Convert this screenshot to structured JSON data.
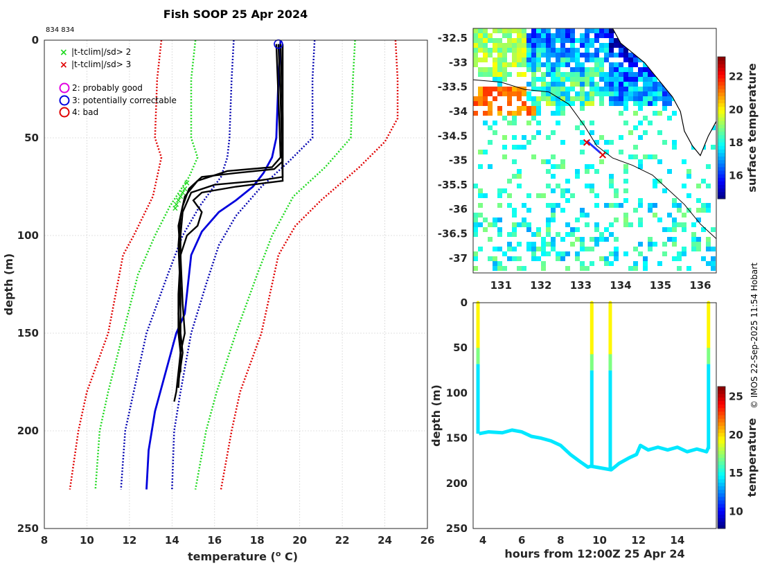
{
  "title": "Fish SOOP 25 Apr 2024",
  "id_label": "834 834",
  "credit": "© IMOS 22-Sep-2025 11:54 Hobart",
  "legend": {
    "x_items": [
      {
        "label": "|t-tclim|/sd> 2",
        "color": "#1fd91f"
      },
      {
        "label": "|t-tclim|/sd> 3",
        "color": "#e00000"
      }
    ],
    "o_items": [
      {
        "label": "2: probably good",
        "color": "#e000e0"
      },
      {
        "label": "3: potentially correctable",
        "color": "#0000e0"
      },
      {
        "label": "4: bad",
        "color": "#e00000"
      }
    ]
  },
  "chart_data": [
    {
      "name": "profile",
      "type": "line",
      "xlabel": "temperature (",
      "xlabel_sup": "o",
      "xlabel_end": " C)",
      "ylabel": "depth (m)",
      "xlim": [
        8,
        26
      ],
      "ylim": [
        250,
        0
      ],
      "xticks": [
        "8",
        "10",
        "12",
        "14",
        "16",
        "18",
        "20",
        "22",
        "24",
        "26"
      ],
      "yticks": [
        "0",
        "50",
        "100",
        "150",
        "200",
        "250"
      ],
      "climatology": [
        {
          "name": "clim -3sd",
          "color": "#e00000",
          "points": [
            [
              13.5,
              0
            ],
            [
              13.3,
              20
            ],
            [
              13.2,
              50
            ],
            [
              13.5,
              60
            ],
            [
              13.1,
              80
            ],
            [
              12.2,
              100
            ],
            [
              11.7,
              110
            ],
            [
              11.0,
              150
            ],
            [
              10.0,
              180
            ],
            [
              9.6,
              200
            ],
            [
              9.2,
              230
            ]
          ]
        },
        {
          "name": "clim -2sd",
          "color": "#1fd91f",
          "points": [
            [
              15.1,
              0
            ],
            [
              14.9,
              20
            ],
            [
              14.9,
              50
            ],
            [
              15.2,
              60
            ],
            [
              14.8,
              70
            ],
            [
              13.9,
              85
            ],
            [
              13.2,
              100
            ],
            [
              12.4,
              120
            ],
            [
              11.7,
              150
            ],
            [
              11.0,
              180
            ],
            [
              10.6,
              200
            ],
            [
              10.4,
              230
            ]
          ]
        },
        {
          "name": "clim -1sd",
          "color": "#0000b0",
          "points": [
            [
              16.9,
              0
            ],
            [
              16.8,
              20
            ],
            [
              16.7,
              50
            ],
            [
              16.6,
              60
            ],
            [
              16.3,
              70
            ],
            [
              15.3,
              85
            ],
            [
              14.5,
              100
            ],
            [
              13.8,
              120
            ],
            [
              12.8,
              150
            ],
            [
              12.2,
              180
            ],
            [
              11.8,
              200
            ],
            [
              11.6,
              230
            ]
          ]
        },
        {
          "name": "clim +1sd",
          "color": "#0000b0",
          "points": [
            [
              20.7,
              0
            ],
            [
              20.6,
              20
            ],
            [
              20.6,
              50
            ],
            [
              19.5,
              62
            ],
            [
              18.2,
              75
            ],
            [
              17.0,
              90
            ],
            [
              16.2,
              105
            ],
            [
              15.6,
              125
            ],
            [
              14.9,
              150
            ],
            [
              14.4,
              180
            ],
            [
              14.1,
              200
            ],
            [
              14.0,
              230
            ]
          ]
        },
        {
          "name": "clim +2sd",
          "color": "#1fd91f",
          "points": [
            [
              22.6,
              0
            ],
            [
              22.5,
              20
            ],
            [
              22.4,
              50
            ],
            [
              21.2,
              65
            ],
            [
              19.7,
              80
            ],
            [
              18.7,
              100
            ],
            [
              18.0,
              120
            ],
            [
              17.0,
              150
            ],
            [
              16.1,
              180
            ],
            [
              15.6,
              200
            ],
            [
              15.1,
              230
            ]
          ]
        },
        {
          "name": "clim +3sd",
          "color": "#e00000",
          "points": [
            [
              24.5,
              0
            ],
            [
              24.6,
              20
            ],
            [
              24.6,
              40
            ],
            [
              24.0,
              52
            ],
            [
              22.8,
              65
            ],
            [
              21.0,
              82
            ],
            [
              19.8,
              95
            ],
            [
              19.0,
              110
            ],
            [
              18.2,
              150
            ],
            [
              17.2,
              180
            ],
            [
              16.8,
              200
            ],
            [
              16.3,
              230
            ]
          ]
        }
      ],
      "climatology_mean": {
        "color": "#0000dd",
        "points": [
          [
            19.1,
            0
          ],
          [
            19.0,
            20
          ],
          [
            18.9,
            50
          ],
          [
            18.7,
            60
          ],
          [
            18.3,
            68
          ],
          [
            17.8,
            75
          ],
          [
            17.0,
            82
          ],
          [
            16.2,
            88
          ],
          [
            15.4,
            98
          ],
          [
            14.9,
            110
          ],
          [
            14.6,
            140
          ],
          [
            14.2,
            150
          ],
          [
            13.7,
            170
          ],
          [
            13.2,
            190
          ],
          [
            12.9,
            210
          ],
          [
            12.8,
            230
          ]
        ]
      },
      "casts": [
        {
          "name": "cast 1",
          "points": [
            [
              19.2,
              2
            ],
            [
              19.2,
              30
            ],
            [
              19.2,
              62
            ],
            [
              18.8,
              66
            ],
            [
              17.0,
              68
            ],
            [
              15.4,
              70
            ],
            [
              14.8,
              76
            ],
            [
              14.5,
              85
            ],
            [
              14.3,
              95
            ],
            [
              14.4,
              110
            ],
            [
              14.3,
              130
            ],
            [
              14.3,
              150
            ],
            [
              14.4,
              160
            ],
            [
              14.3,
              170
            ],
            [
              14.2,
              180
            ],
            [
              14.1,
              185
            ]
          ]
        },
        {
          "name": "cast 2",
          "points": [
            [
              18.9,
              2
            ],
            [
              19.0,
              30
            ],
            [
              19.1,
              60
            ],
            [
              18.7,
              65
            ],
            [
              16.6,
              67
            ],
            [
              15.2,
              72
            ],
            [
              14.6,
              80
            ],
            [
              14.4,
              90
            ],
            [
              14.3,
              105
            ],
            [
              14.4,
              130
            ],
            [
              14.4,
              150
            ],
            [
              14.5,
              160
            ],
            [
              14.3,
              175
            ]
          ]
        },
        {
          "name": "cast 3",
          "points": [
            [
              19.1,
              2
            ],
            [
              19.2,
              40
            ],
            [
              19.2,
              70
            ],
            [
              18.0,
              72
            ],
            [
              16.0,
              74
            ],
            [
              14.9,
              78
            ],
            [
              14.5,
              88
            ],
            [
              14.4,
              100
            ],
            [
              14.4,
              120
            ],
            [
              14.3,
              140
            ],
            [
              14.4,
              160
            ],
            [
              14.3,
              178
            ]
          ]
        },
        {
          "name": "cast 4",
          "points": [
            [
              19.0,
              2
            ],
            [
              19.1,
              30
            ],
            [
              19.2,
              72
            ],
            [
              17.0,
              75
            ],
            [
              15.4,
              78
            ],
            [
              15.0,
              82
            ],
            [
              15.4,
              88
            ],
            [
              15.2,
              95
            ],
            [
              14.7,
              100
            ],
            [
              14.4,
              110
            ],
            [
              14.5,
              135
            ],
            [
              14.6,
              150
            ],
            [
              14.4,
              160
            ],
            [
              14.4,
              170
            ]
          ]
        }
      ],
      "flag_x_green": [
        [
          14.7,
          73
        ],
        [
          14.6,
          76
        ],
        [
          14.5,
          78
        ],
        [
          14.4,
          80
        ],
        [
          14.3,
          82
        ],
        [
          14.2,
          84
        ],
        [
          14.15,
          86
        ]
      ],
      "flag_circle": [
        19.0,
        2
      ]
    },
    {
      "name": "map",
      "type": "heatmap",
      "xlim": [
        130.3,
        136.4
      ],
      "ylim": [
        -37.3,
        -32.3
      ],
      "xticks": [
        "131",
        "132",
        "133",
        "134",
        "135",
        "136"
      ],
      "yticks": [
        "-32.5",
        "-33",
        "-33.5",
        "-34",
        "-34.5",
        "-35",
        "-35.5",
        "-36",
        "-36.5",
        "-37"
      ],
      "colorbar_label": "surface temperature",
      "colorbar_ticks": [
        "16",
        "18",
        "20",
        "22"
      ],
      "clim": [
        14.6,
        23.2
      ],
      "coast": [
        [
          133.8,
          -32.3
        ],
        [
          134.0,
          -32.6
        ],
        [
          134.3,
          -32.8
        ],
        [
          134.6,
          -33.0
        ],
        [
          135.0,
          -33.4
        ],
        [
          135.3,
          -33.7
        ],
        [
          135.5,
          -34.0
        ],
        [
          135.6,
          -34.4
        ],
        [
          135.8,
          -34.7
        ],
        [
          136.0,
          -34.9
        ],
        [
          136.2,
          -34.5
        ],
        [
          136.4,
          -34.2
        ]
      ],
      "shelf": [
        [
          130.3,
          -33.35
        ],
        [
          131.0,
          -33.4
        ],
        [
          131.6,
          -33.55
        ],
        [
          132.2,
          -33.6
        ],
        [
          132.7,
          -33.85
        ],
        [
          133.1,
          -34.3
        ],
        [
          133.4,
          -34.7
        ],
        [
          133.8,
          -34.95
        ],
        [
          134.3,
          -35.1
        ],
        [
          134.8,
          -35.3
        ],
        [
          135.2,
          -35.6
        ],
        [
          135.6,
          -35.9
        ],
        [
          136.0,
          -36.3
        ],
        [
          136.4,
          -36.6
        ]
      ],
      "track": [
        [
          133.15,
          -34.6
        ],
        [
          133.5,
          -34.85
        ]
      ],
      "track_x": [
        [
          133.15,
          -34.62
        ],
        [
          133.55,
          -34.88
        ]
      ]
    },
    {
      "name": "timeseries",
      "type": "scatter",
      "xlabel": "hours from 12:00Z 25 Apr 24",
      "ylabel": "depth (m)",
      "xlim": [
        3.5,
        16.0
      ],
      "ylim": [
        250,
        0
      ],
      "xticks": [
        "4",
        "6",
        "8",
        "10",
        "12",
        "14"
      ],
      "yticks": [
        "0",
        "50",
        "100",
        "150",
        "200",
        "250"
      ],
      "colorbar_label": "temperature",
      "colorbar_ticks": [
        "10",
        "15",
        "20",
        "25"
      ],
      "clim": [
        7.8,
        26.3
      ],
      "casts": [
        {
          "x0": 3.75,
          "t_surface": 19.5,
          "t_deep": 14.3,
          "thermocline": 68,
          "bottom": 145
        },
        {
          "x0": 9.6,
          "t_surface": 19.5,
          "t_deep": 14.3,
          "thermocline": 75,
          "bottom": 182
        },
        {
          "x0": 10.55,
          "t_surface": 19.5,
          "t_deep": 14.3,
          "thermocline": 75,
          "bottom": 185
        },
        {
          "x0": 15.6,
          "t_surface": 19.5,
          "t_deep": 14.3,
          "thermocline": 68,
          "bottom": 162
        }
      ],
      "bottom_track": [
        [
          3.8,
          145
        ],
        [
          4.3,
          143
        ],
        [
          5.0,
          144
        ],
        [
          5.5,
          141
        ],
        [
          6.0,
          143
        ],
        [
          6.5,
          148
        ],
        [
          7.0,
          150
        ],
        [
          7.5,
          153
        ],
        [
          8.0,
          158
        ],
        [
          8.5,
          168
        ],
        [
          9.0,
          176
        ],
        [
          9.4,
          182
        ],
        [
          9.55,
          181
        ],
        [
          10.6,
          185
        ],
        [
          11.0,
          178
        ],
        [
          11.5,
          172
        ],
        [
          11.9,
          168
        ],
        [
          12.1,
          158
        ],
        [
          12.5,
          163
        ],
        [
          13.0,
          160
        ],
        [
          13.5,
          163
        ],
        [
          14.0,
          160
        ],
        [
          14.5,
          165
        ],
        [
          15.0,
          162
        ],
        [
          15.5,
          165
        ],
        [
          15.6,
          160
        ]
      ]
    }
  ]
}
